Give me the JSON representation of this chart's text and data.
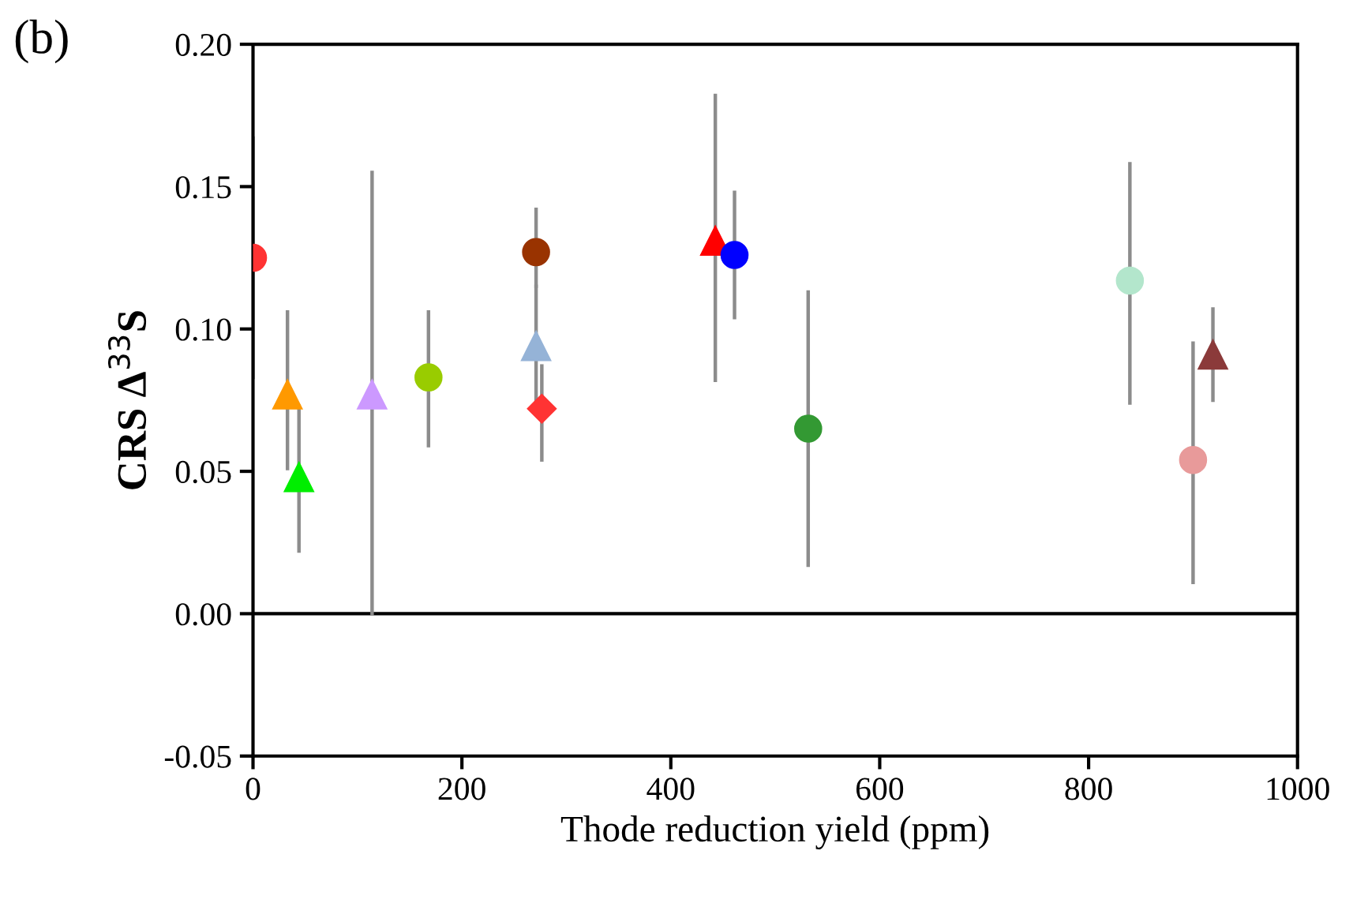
{
  "chart_data": {
    "type": "scatter",
    "title": "(b)",
    "xlabel": "Thode reduction yield (ppm)",
    "ylabel": "CRS Δ$^{33}$S",
    "xlim": [
      0,
      1000
    ],
    "xticks": [
      0,
      200,
      400,
      600,
      800,
      1000
    ],
    "ylim": [
      -0.05,
      0.2
    ],
    "yticks": [
      {
        "value": -0.05,
        "label": "-0.05"
      },
      {
        "value": 0,
        "label": "0.00"
      },
      {
        "value": 0.05,
        "label": "0.05"
      },
      {
        "value": 0.1,
        "label": "0.10"
      },
      {
        "value": 0.15,
        "label": "0.15"
      },
      {
        "value": 0.2,
        "label": "0.20"
      }
    ],
    "grid": false,
    "legend": false,
    "ref_lines": [
      {
        "axis": "y",
        "value": 0,
        "color": "#000000"
      }
    ],
    "series": [
      {
        "color": "#ff3333",
        "marker": "circle",
        "x": [
          0
        ],
        "values": [
          0.125
        ],
        "errors": [
          [
            0.083,
            0.167
          ]
        ]
      },
      {
        "color": "#ff9900",
        "marker": "triangle",
        "x": [
          33
        ],
        "values": [
          0.077
        ],
        "errors": [
          [
            0.051,
            0.106
          ]
        ]
      },
      {
        "color": "#00ee00",
        "marker": "triangle",
        "x": [
          44
        ],
        "values": [
          0.048
        ],
        "errors": [
          [
            0.022,
            0.073
          ]
        ]
      },
      {
        "color": "#cc99ff",
        "marker": "triangle",
        "x": [
          114
        ],
        "values": [
          0.077
        ],
        "errors": [
          [
            0.0,
            0.155
          ]
        ]
      },
      {
        "color": "#99cc00",
        "marker": "circle",
        "x": [
          168
        ],
        "values": [
          0.083
        ],
        "errors": [
          [
            0.059,
            0.106
          ]
        ]
      },
      {
        "color": "#993300",
        "marker": "circle",
        "x": [
          271
        ],
        "values": [
          0.127
        ],
        "errors": [
          [
            0.115,
            0.142
          ]
        ]
      },
      {
        "color": "#95b3d7",
        "marker": "triangle",
        "x": [
          271
        ],
        "values": [
          0.094
        ],
        "errors": [
          [
            0.073,
            0.115
          ]
        ]
      },
      {
        "color": "#ff3333",
        "marker": "diamond",
        "x": [
          276.5
        ],
        "values": [
          0.072
        ],
        "errors": [
          [
            0.054,
            0.087
          ]
        ]
      },
      {
        "color": "#ff0000",
        "marker": "triangle",
        "x": [
          442.6
        ],
        "values": [
          0.131
        ],
        "errors": [
          [
            0.082,
            0.182
          ]
        ]
      },
      {
        "color": "#0000ff",
        "marker": "circle",
        "x": [
          461
        ],
        "values": [
          0.126
        ],
        "errors": [
          [
            0.104,
            0.148
          ]
        ]
      },
      {
        "color": "#339933",
        "marker": "circle",
        "x": [
          531.5
        ],
        "values": [
          0.065
        ],
        "errors": [
          [
            0.017,
            0.113
          ]
        ]
      },
      {
        "color": "#b3e6cc",
        "marker": "circle",
        "x": [
          839.5
        ],
        "values": [
          0.117
        ],
        "errors": [
          [
            0.074,
            0.158
          ]
        ]
      },
      {
        "color": "#e89a9a",
        "marker": "circle",
        "x": [
          900
        ],
        "values": [
          0.054
        ],
        "errors": [
          [
            0.011,
            0.095
          ]
        ]
      },
      {
        "color": "#8b3a3a",
        "marker": "triangle",
        "x": [
          919
        ],
        "values": [
          0.091
        ],
        "errors": [
          [
            0.075,
            0.107
          ]
        ]
      }
    ]
  }
}
